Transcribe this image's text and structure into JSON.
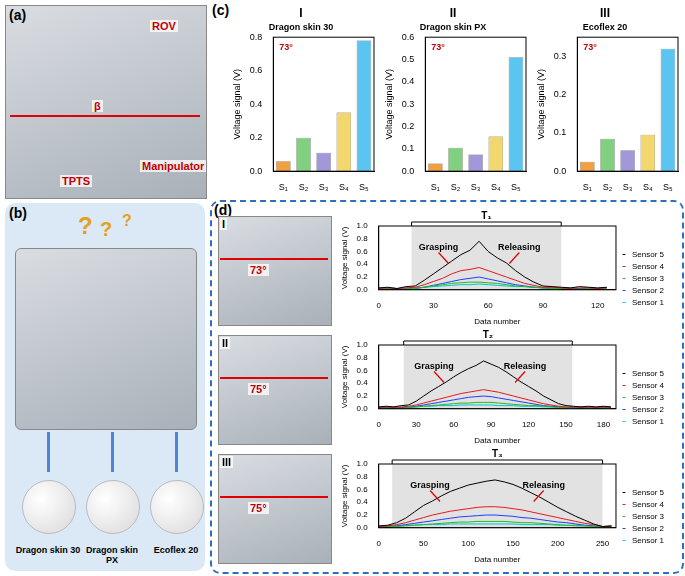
{
  "panels": {
    "a": {
      "label": "(a)",
      "annotations": [
        "ROV",
        "β",
        "TPTS",
        "Manipulator"
      ]
    },
    "b": {
      "label": "(b)",
      "question_marks": [
        "?",
        "?",
        "?"
      ],
      "samples": [
        "Dragon skin 30",
        "Dragon skin PX",
        "Ecoflex 20"
      ]
    },
    "c": {
      "label": "(c)",
      "photo_angles": [
        "73°",
        "73°",
        "73°"
      ]
    },
    "d": {
      "label": "(d)",
      "rows": [
        "I",
        "II",
        "III"
      ],
      "photo_angles": [
        "73°",
        "75°",
        "75°"
      ]
    }
  },
  "chart_data": [
    {
      "type": "bar",
      "title": "I",
      "subtitle": "Dragon skin 30",
      "ylabel": "Voltage signal (V)",
      "categories": [
        "S₁",
        "S₂",
        "S₃",
        "S₄",
        "S₅"
      ],
      "values": [
        0.06,
        0.2,
        0.11,
        0.35,
        0.78
      ],
      "colors": [
        "#f0a040",
        "#80d080",
        "#a098d8",
        "#f2d66e",
        "#5cc4f0"
      ],
      "ylim": [
        0,
        0.8
      ],
      "yticks": [
        {
          "value": 0,
          "label": "0.0"
        },
        0.2,
        0.4,
        0.6,
        0.8
      ],
      "grid": false
    },
    {
      "type": "bar",
      "title": "II",
      "subtitle": "Dragon skin PX",
      "ylabel": "Voltage signal (V)",
      "categories": [
        "S₁",
        "S₂",
        "S₃",
        "S₄",
        "S₅"
      ],
      "values": [
        0.035,
        0.105,
        0.075,
        0.155,
        0.51
      ],
      "colors": [
        "#f0a040",
        "#80d080",
        "#a098d8",
        "#f2d66e",
        "#5cc4f0"
      ],
      "ylim": [
        0,
        0.6
      ],
      "yticks": [
        {
          "value": 0,
          "label": "0.0"
        },
        0.1,
        0.2,
        0.3,
        0.4,
        0.5,
        0.6
      ],
      "grid": false
    },
    {
      "type": "bar",
      "title": "III",
      "subtitle": "Ecoflex 20",
      "ylabel": "Voltage signal (V)",
      "categories": [
        "S₁",
        "S₂",
        "S₃",
        "S₄",
        "S₅"
      ],
      "values": [
        0.025,
        0.085,
        0.055,
        0.095,
        0.32
      ],
      "colors": [
        "#f0a040",
        "#80d080",
        "#a098d8",
        "#f2d66e",
        "#5cc4f0"
      ],
      "ylim": [
        0,
        0.35
      ],
      "yticks": [
        {
          "value": 0,
          "label": "0.0"
        },
        0.1,
        0.2,
        0.3
      ],
      "grid": false
    },
    {
      "type": "line",
      "xlabel": "Data number",
      "ylabel": "Voltage signal (V)",
      "x": [
        0,
        5,
        10,
        15,
        20,
        25,
        30,
        35,
        40,
        45,
        50,
        55,
        60,
        65,
        70,
        75,
        80,
        85,
        90,
        95,
        100,
        105,
        110,
        115,
        120,
        125
      ],
      "series": [
        {
          "name": "Sensor 5",
          "color": "#000000",
          "values": [
            0.03,
            0.04,
            0.02,
            0.05,
            0.06,
            0.15,
            0.25,
            0.35,
            0.45,
            0.55,
            0.62,
            0.76,
            0.6,
            0.5,
            0.42,
            0.3,
            0.2,
            0.12,
            0.06,
            0.05,
            0.04,
            0.03,
            0.05,
            0.04,
            0.03,
            0.04
          ]
        },
        {
          "name": "Sensor 4",
          "color": "#e41a1c",
          "values": [
            0.02,
            0.03,
            0.02,
            0.03,
            0.04,
            0.08,
            0.13,
            0.18,
            0.25,
            0.3,
            0.32,
            0.35,
            0.3,
            0.25,
            0.2,
            0.15,
            0.1,
            0.07,
            0.04,
            0.04,
            0.03,
            0.02,
            0.03,
            0.03,
            0.02,
            0.03
          ]
        },
        {
          "name": "Sensor 3",
          "color": "#22bb22",
          "values": [
            0.01,
            0.02,
            0.01,
            0.02,
            0.02,
            0.04,
            0.06,
            0.08,
            0.1,
            0.11,
            0.12,
            0.12,
            0.11,
            0.1,
            0.08,
            0.06,
            0.05,
            0.04,
            0.03,
            0.02,
            0.02,
            0.02,
            0.01,
            0.02,
            0.02,
            0.01
          ]
        },
        {
          "name": "Sensor 2",
          "color": "#1f3fff",
          "values": [
            0.01,
            0.01,
            0.02,
            0.01,
            0.02,
            0.04,
            0.07,
            0.1,
            0.13,
            0.16,
            0.18,
            0.2,
            0.17,
            0.14,
            0.11,
            0.08,
            0.06,
            0.04,
            0.03,
            0.02,
            0.02,
            0.01,
            0.02,
            0.01,
            0.02,
            0.01
          ]
        },
        {
          "name": "Sensor 1",
          "color": "#00c8c8",
          "values": [
            0.02,
            0.03,
            0.02,
            0.03,
            0.03,
            0.04,
            0.05,
            0.06,
            0.07,
            0.08,
            0.08,
            0.09,
            0.08,
            0.07,
            0.06,
            0.05,
            0.05,
            0.04,
            0.03,
            0.03,
            0.02,
            0.03,
            0.02,
            0.03,
            0.02,
            0.03
          ]
        }
      ],
      "xlim": [
        0,
        130
      ],
      "xticks": [
        0,
        30,
        60,
        90,
        120
      ],
      "ylim": [
        0,
        1
      ],
      "yticks": [
        {
          "value": 0,
          "label": "0.0"
        },
        0.2,
        0.4,
        0.6,
        0.8,
        {
          "value": 1,
          "label": "1.0"
        }
      ],
      "span": {
        "label": "T₁",
        "range": [
          18,
          100
        ]
      },
      "annotations": [
        "Grasping",
        "Releasing"
      ],
      "grid": false,
      "legend": "right"
    },
    {
      "type": "line",
      "xlabel": "Data number",
      "ylabel": "Voltage signal (V)",
      "x": [
        0,
        6,
        12,
        18,
        24,
        30,
        36,
        42,
        48,
        54,
        60,
        66,
        72,
        78,
        84,
        90,
        96,
        102,
        108,
        114,
        120,
        126,
        132,
        138,
        144,
        150,
        156,
        162,
        168,
        174,
        180,
        186
      ],
      "series": [
        {
          "name": "Sensor 5",
          "color": "#000000",
          "values": [
            0.03,
            0.04,
            0.03,
            0.05,
            0.06,
            0.12,
            0.2,
            0.28,
            0.35,
            0.42,
            0.5,
            0.57,
            0.63,
            0.68,
            0.75,
            0.7,
            0.65,
            0.58,
            0.5,
            0.42,
            0.35,
            0.28,
            0.2,
            0.14,
            0.08,
            0.05,
            0.04,
            0.03,
            0.04,
            0.03,
            0.04,
            0.03
          ]
        },
        {
          "name": "Sensor 4",
          "color": "#e41a1c",
          "values": [
            0.02,
            0.03,
            0.02,
            0.03,
            0.04,
            0.06,
            0.09,
            0.12,
            0.15,
            0.18,
            0.21,
            0.24,
            0.26,
            0.28,
            0.3,
            0.28,
            0.26,
            0.23,
            0.2,
            0.17,
            0.14,
            0.11,
            0.08,
            0.06,
            0.04,
            0.03,
            0.03,
            0.02,
            0.03,
            0.02,
            0.03,
            0.02
          ]
        },
        {
          "name": "Sensor 3",
          "color": "#22bb22",
          "values": [
            0.01,
            0.01,
            0.02,
            0.01,
            0.02,
            0.03,
            0.04,
            0.05,
            0.06,
            0.07,
            0.08,
            0.09,
            0.09,
            0.1,
            0.1,
            0.1,
            0.09,
            0.08,
            0.07,
            0.06,
            0.05,
            0.05,
            0.04,
            0.03,
            0.02,
            0.02,
            0.01,
            0.02,
            0.01,
            0.02,
            0.01,
            0.01
          ]
        },
        {
          "name": "Sensor 2",
          "color": "#1f3fff",
          "values": [
            0.01,
            0.02,
            0.01,
            0.02,
            0.02,
            0.04,
            0.06,
            0.08,
            0.1,
            0.12,
            0.14,
            0.16,
            0.18,
            0.19,
            0.2,
            0.19,
            0.17,
            0.15,
            0.13,
            0.11,
            0.09,
            0.07,
            0.05,
            0.04,
            0.03,
            0.02,
            0.02,
            0.01,
            0.02,
            0.01,
            0.02,
            0.01
          ]
        },
        {
          "name": "Sensor 1",
          "color": "#00c8c8",
          "values": [
            0.02,
            0.02,
            0.03,
            0.02,
            0.03,
            0.03,
            0.04,
            0.04,
            0.05,
            0.05,
            0.05,
            0.06,
            0.06,
            0.06,
            0.06,
            0.06,
            0.05,
            0.05,
            0.05,
            0.04,
            0.04,
            0.04,
            0.03,
            0.03,
            0.03,
            0.02,
            0.02,
            0.03,
            0.02,
            0.02,
            0.03,
            0.02
          ]
        }
      ],
      "xlim": [
        0,
        190
      ],
      "xticks": [
        0,
        30,
        60,
        90,
        120,
        150,
        180
      ],
      "ylim": [
        0,
        1
      ],
      "yticks": [
        {
          "value": 0,
          "label": "0.0"
        },
        0.2,
        0.4,
        0.6,
        0.8,
        {
          "value": 1,
          "label": "1.0"
        }
      ],
      "span": {
        "label": "T₂",
        "range": [
          20,
          155
        ]
      },
      "annotations": [
        "Grasping",
        "Releasing"
      ],
      "grid": false,
      "legend": "right"
    },
    {
      "type": "line",
      "xlabel": "Data number",
      "ylabel": "Voltage signal (V)",
      "x": [
        0,
        10,
        20,
        30,
        40,
        50,
        60,
        70,
        80,
        90,
        100,
        110,
        120,
        130,
        140,
        150,
        160,
        170,
        180,
        190,
        200,
        210,
        220,
        230,
        240,
        250,
        260
      ],
      "series": [
        {
          "name": "Sensor 5",
          "color": "#000000",
          "values": [
            0.03,
            0.04,
            0.08,
            0.15,
            0.25,
            0.35,
            0.42,
            0.5,
            0.57,
            0.62,
            0.67,
            0.7,
            0.73,
            0.75,
            0.72,
            0.68,
            0.62,
            0.55,
            0.48,
            0.4,
            0.32,
            0.25,
            0.18,
            0.12,
            0.06,
            0.02,
            0.03
          ]
        },
        {
          "name": "Sensor 4",
          "color": "#e41a1c",
          "values": [
            0.02,
            0.03,
            0.05,
            0.08,
            0.12,
            0.16,
            0.2,
            0.23,
            0.26,
            0.28,
            0.3,
            0.32,
            0.33,
            0.33,
            0.32,
            0.3,
            0.28,
            0.25,
            0.22,
            0.19,
            0.16,
            0.13,
            0.1,
            0.07,
            0.05,
            0.02,
            0.03
          ]
        },
        {
          "name": "Sensor 3",
          "color": "#22bb22",
          "values": [
            0.01,
            0.02,
            0.02,
            0.03,
            0.04,
            0.05,
            0.06,
            0.07,
            0.08,
            0.09,
            0.09,
            0.1,
            0.1,
            0.1,
            0.1,
            0.09,
            0.08,
            0.08,
            0.07,
            0.06,
            0.05,
            0.04,
            0.03,
            0.03,
            0.02,
            0.01,
            0.01
          ]
        },
        {
          "name": "Sensor 2",
          "color": "#1f3fff",
          "values": [
            0.01,
            0.02,
            0.03,
            0.05,
            0.07,
            0.09,
            0.11,
            0.13,
            0.15,
            0.17,
            0.18,
            0.19,
            0.2,
            0.2,
            0.19,
            0.18,
            0.16,
            0.15,
            0.13,
            0.11,
            0.09,
            0.08,
            0.06,
            0.04,
            0.03,
            0.01,
            0.02
          ]
        },
        {
          "name": "Sensor 1",
          "color": "#00c8c8",
          "values": [
            0.02,
            0.03,
            0.03,
            0.04,
            0.04,
            0.05,
            0.05,
            0.05,
            0.06,
            0.06,
            0.06,
            0.06,
            0.06,
            0.06,
            0.06,
            0.06,
            0.05,
            0.05,
            0.05,
            0.05,
            0.04,
            0.04,
            0.04,
            0.03,
            0.03,
            0.02,
            0.02
          ]
        }
      ],
      "xlim": [
        0,
        265
      ],
      "xticks": [
        0,
        50,
        100,
        150,
        200,
        250
      ],
      "ylim": [
        0,
        1
      ],
      "yticks": [
        {
          "value": 0,
          "label": "0.0"
        },
        0.2,
        0.4,
        0.6,
        0.8,
        {
          "value": 1,
          "label": "1.0"
        }
      ],
      "span": {
        "label": "T₃",
        "range": [
          15,
          250
        ]
      },
      "annotations": [
        "Grasping",
        "Releasing"
      ],
      "grid": false,
      "legend": "right"
    }
  ]
}
